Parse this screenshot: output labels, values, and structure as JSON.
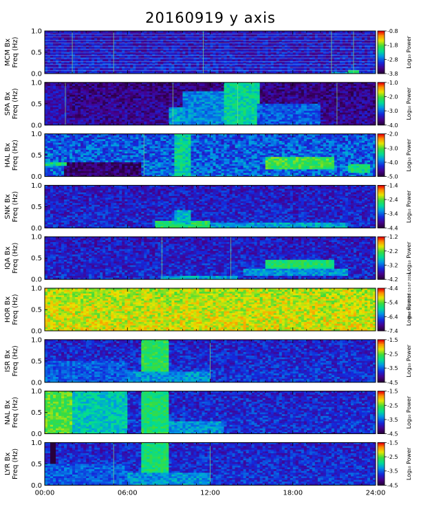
{
  "title": "20160919 y axis",
  "stamp": "Wed Sep 21 20:13:07 2016",
  "chart_data": [
    {
      "type": "heatmap",
      "station": "MCM",
      "ylabel": [
        "MCM Bx",
        "Freq (Hz)"
      ],
      "yticks": [
        "0.0",
        "0.5",
        "1.0"
      ],
      "colorbar_label": "Log₁₀ Power",
      "colorbar_ticks": [
        "-0.8",
        "-1.8",
        "-2.8",
        "-3.8"
      ],
      "crange": [
        -3.8,
        -0.8
      ],
      "base": 0.18,
      "noise": 0.1,
      "features": [
        {
          "t": [
            22,
            22.8
          ],
          "f": [
            0,
            0.07
          ],
          "v": 0.55
        },
        {
          "t": [
            20.8,
            22
          ],
          "f": [
            0,
            0.05
          ],
          "v": 0.4
        }
      ],
      "vlines": [
        2.0,
        5.0,
        11.5,
        20.8,
        22.4
      ],
      "hlines": true
    },
    {
      "type": "heatmap",
      "station": "SPA",
      "ylabel": [
        "SPA Bx",
        "Freq (Hz)"
      ],
      "yticks": [
        "0.0",
        "0.5",
        "1.0"
      ],
      "colorbar_label": "Log₁₀ Power",
      "colorbar_ticks": [
        "-1.0",
        "-2.0",
        "-3.0",
        "-4.0"
      ],
      "crange": [
        -4.0,
        -1.0
      ],
      "base": 0.1,
      "noise": 0.1,
      "features": [
        {
          "t": [
            0,
            1.5
          ],
          "f": [
            0,
            0.9
          ],
          "v": 0.18
        },
        {
          "t": [
            10,
            13
          ],
          "f": [
            0,
            0.8
          ],
          "v": 0.38
        },
        {
          "t": [
            13,
            15.5
          ],
          "f": [
            0,
            1.0
          ],
          "v": 0.52
        },
        {
          "t": [
            15.5,
            20
          ],
          "f": [
            0,
            0.5
          ],
          "v": 0.32
        },
        {
          "t": [
            9,
            10
          ],
          "f": [
            0,
            0.4
          ],
          "v": 0.42
        }
      ],
      "vlines": [
        1.5,
        9.3,
        14.0,
        21.2
      ],
      "hlines": false
    },
    {
      "type": "heatmap",
      "station": "HAL",
      "ylabel": [
        "HAL Bx",
        "Freq (Hz)"
      ],
      "yticks": [
        "0.0",
        "0.5",
        "1.0"
      ],
      "colorbar_label": "Log₁₀ Power",
      "colorbar_ticks": [
        "-2.0",
        "-3.0",
        "-4.0",
        "-5.0"
      ],
      "crange": [
        -5.0,
        -2.0
      ],
      "base": 0.3,
      "noise": 0.12,
      "features": [
        {
          "t": [
            1.5,
            7
          ],
          "f": [
            0,
            0.35
          ],
          "v": 0.08
        },
        {
          "t": [
            0,
            1.5
          ],
          "f": [
            0.25,
            0.35
          ],
          "v": 0.55
        },
        {
          "t": [
            16,
            21
          ],
          "f": [
            0.15,
            0.45
          ],
          "v": 0.62
        },
        {
          "t": [
            9.5,
            10.5
          ],
          "f": [
            0,
            1.0
          ],
          "v": 0.52
        },
        {
          "t": [
            22,
            23.5
          ],
          "f": [
            0.1,
            0.3
          ],
          "v": 0.55
        }
      ],
      "vlines": [
        7.2
      ],
      "hlines": false
    },
    {
      "type": "heatmap",
      "station": "SNK",
      "ylabel": [
        "SNK Bx",
        "Freq (Hz)"
      ],
      "yticks": [
        "0.0",
        "0.5",
        "1.0"
      ],
      "colorbar_label": "Log₁₀ Power",
      "colorbar_ticks": [
        "-1.4",
        "-2.4",
        "-3.4",
        "-4.4"
      ],
      "crange": [
        -4.4,
        -1.4
      ],
      "base": 0.2,
      "noise": 0.1,
      "features": [
        {
          "t": [
            8,
            12
          ],
          "f": [
            0,
            0.15
          ],
          "v": 0.6
        },
        {
          "t": [
            12,
            22
          ],
          "f": [
            0,
            0.12
          ],
          "v": 0.42
        },
        {
          "t": [
            9.5,
            10.5
          ],
          "f": [
            0.1,
            0.4
          ],
          "v": 0.45
        }
      ],
      "vlines": [],
      "hlines": false
    },
    {
      "type": "heatmap",
      "station": "IQA",
      "ylabel": [
        "IQA Bx",
        "Freq (Hz)"
      ],
      "yticks": [
        "0.0",
        "0.5",
        "1.0"
      ],
      "colorbar_label": "Log₁₀ Power",
      "colorbar_ticks": [
        "-1.2",
        "-2.2",
        "-3.2",
        "-4.2"
      ],
      "crange": [
        -4.2,
        -1.2
      ],
      "base": 0.2,
      "noise": 0.1,
      "features": [
        {
          "t": [
            16,
            21
          ],
          "f": [
            0.25,
            0.45
          ],
          "v": 0.58
        },
        {
          "t": [
            14.5,
            22
          ],
          "f": [
            0.1,
            0.25
          ],
          "v": 0.4
        },
        {
          "t": [
            8.5,
            14
          ],
          "f": [
            0,
            0.1
          ],
          "v": 0.42
        }
      ],
      "vlines": [
        8.5,
        13.5
      ],
      "hlines": false
    },
    {
      "type": "heatmap",
      "station": "HOR",
      "ylabel": [
        "HOR Bx",
        "Freq (Hz)"
      ],
      "yticks": [
        "0.0",
        "0.5",
        "1.0"
      ],
      "colorbar_label": "Log₁₀ Power",
      "colorbar_ticks": [
        "-4.4",
        "-5.4",
        "-6.4",
        "-7.4"
      ],
      "crange": [
        -7.4,
        -4.4
      ],
      "base": 0.74,
      "noise": 0.1,
      "features": [],
      "vlines": [],
      "hlines": false
    },
    {
      "type": "heatmap",
      "station": "ISR",
      "ylabel": [
        "ISR Bx",
        "Freq (Hz)"
      ],
      "yticks": [
        "0.0",
        "0.5",
        "1.0"
      ],
      "colorbar_label": "Log₁₀ Power",
      "colorbar_ticks": [
        "-1.5",
        "-2.5",
        "-3.5",
        "-4.5"
      ],
      "crange": [
        -4.5,
        -1.5
      ],
      "base": 0.22,
      "noise": 0.1,
      "features": [
        {
          "t": [
            7,
            9
          ],
          "f": [
            0,
            1.0
          ],
          "v": 0.6
        },
        {
          "t": [
            6,
            12
          ],
          "f": [
            0,
            0.25
          ],
          "v": 0.4
        },
        {
          "t": [
            0,
            6
          ],
          "f": [
            0,
            0.5
          ],
          "v": 0.32
        }
      ],
      "vlines": [
        12.0
      ],
      "hlines": false
    },
    {
      "type": "heatmap",
      "station": "NAL",
      "ylabel": [
        "NAL Bx",
        "Freq (Hz)"
      ],
      "yticks": [
        "0.0",
        "0.5",
        "1.0"
      ],
      "colorbar_label": "Log₁₀ Power",
      "colorbar_ticks": [
        "-1.5",
        "-2.5",
        "-3.5",
        "-4.5"
      ],
      "crange": [
        -4.5,
        -1.5
      ],
      "base": 0.22,
      "noise": 0.1,
      "features": [
        {
          "t": [
            0,
            2
          ],
          "f": [
            0,
            1.0
          ],
          "v": 0.66
        },
        {
          "t": [
            2,
            6
          ],
          "f": [
            0,
            1.0
          ],
          "v": 0.48
        },
        {
          "t": [
            7,
            9
          ],
          "f": [
            0,
            1.0
          ],
          "v": 0.58
        },
        {
          "t": [
            9,
            13
          ],
          "f": [
            0,
            0.3
          ],
          "v": 0.4
        }
      ],
      "vlines": [],
      "hlines": false
    },
    {
      "type": "heatmap",
      "station": "LYR",
      "ylabel": [
        "LYR Bx",
        "Freq (Hz)"
      ],
      "yticks": [
        "0.0",
        "0.5",
        "1.0"
      ],
      "colorbar_label": "Log₁₀ Power",
      "colorbar_ticks": [
        "-1.5",
        "-2.5",
        "-3.5",
        "-4.5"
      ],
      "crange": [
        -4.5,
        -1.5
      ],
      "base": 0.22,
      "noise": 0.1,
      "features": [
        {
          "t": [
            0.5,
            0.8
          ],
          "f": [
            0,
            1.0
          ],
          "v": -0.2
        },
        {
          "t": [
            7,
            9
          ],
          "f": [
            0,
            1.0
          ],
          "v": 0.58
        },
        {
          "t": [
            6,
            12
          ],
          "f": [
            0,
            0.3
          ],
          "v": 0.4
        },
        {
          "t": [
            0,
            6
          ],
          "f": [
            0,
            0.5
          ],
          "v": 0.32
        }
      ],
      "vlines": [
        5.0,
        12.0
      ],
      "hlines": false
    }
  ],
  "xaxis": {
    "ticks": [
      "00:00",
      "06:00",
      "12:00",
      "18:00",
      "24:00"
    ],
    "range": [
      0,
      24
    ],
    "unit": "hours UT"
  }
}
